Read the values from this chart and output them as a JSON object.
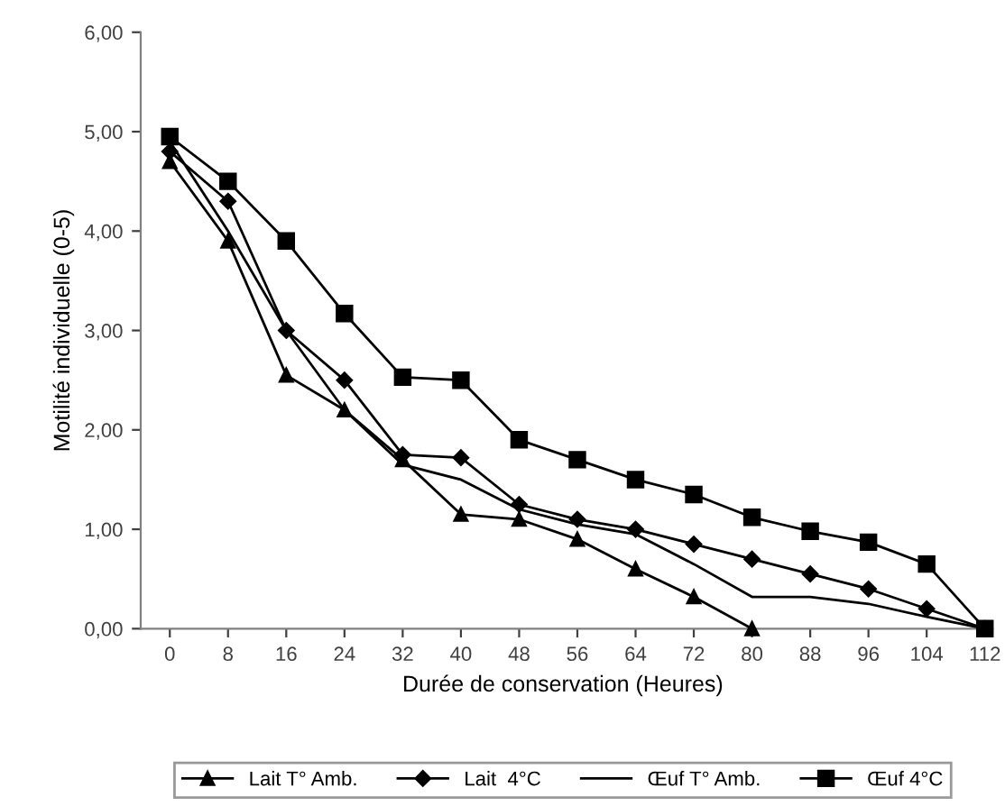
{
  "chart_data": {
    "type": "line",
    "xlabel": "Durée de conservation (Heures)",
    "ylabel": "Motilité individuelle (0-5)",
    "categories": [
      "0",
      "8",
      "16",
      "24",
      "32",
      "40",
      "48",
      "56",
      "64",
      "72",
      "80",
      "88",
      "96",
      "104",
      "112"
    ],
    "ylim": [
      0,
      6
    ],
    "yticks": [
      {
        "value": 0,
        "label": "0,00"
      },
      {
        "value": 1,
        "label": "1,00"
      },
      {
        "value": 2,
        "label": "2,00"
      },
      {
        "value": 3,
        "label": "3,00"
      },
      {
        "value": 4,
        "label": "4,00"
      },
      {
        "value": 5,
        "label": "5,00"
      },
      {
        "value": 6,
        "label": "6,00"
      }
    ],
    "grid": false,
    "legend": "bottom",
    "series": [
      {
        "name": "Lait T° Amb.",
        "color": "#000000",
        "marker": "triangle",
        "values": [
          4.7,
          3.9,
          2.55,
          2.2,
          1.7,
          1.15,
          1.1,
          0.9,
          0.6,
          0.32,
          0.0,
          null,
          null,
          null,
          null
        ]
      },
      {
        "name": "Lait  4°C",
        "color": "#000000",
        "marker": "diamond",
        "values": [
          4.8,
          4.3,
          3.0,
          2.5,
          1.75,
          1.72,
          1.25,
          1.1,
          1.0,
          0.85,
          0.7,
          0.55,
          0.4,
          0.2,
          0.0
        ]
      },
      {
        "name": "Œuf T° Amb.",
        "color": "#000000",
        "marker": "none",
        "values": [
          4.9,
          4.0,
          3.0,
          2.2,
          1.65,
          1.5,
          1.2,
          1.05,
          0.95,
          0.65,
          0.32,
          0.32,
          0.25,
          0.12,
          0.0
        ]
      },
      {
        "name": "Œuf 4°C",
        "color": "#000000",
        "marker": "square",
        "values": [
          4.95,
          4.5,
          3.9,
          3.17,
          2.53,
          2.5,
          1.9,
          1.7,
          1.5,
          1.35,
          1.12,
          0.98,
          0.87,
          0.65,
          0.0
        ]
      }
    ]
  }
}
